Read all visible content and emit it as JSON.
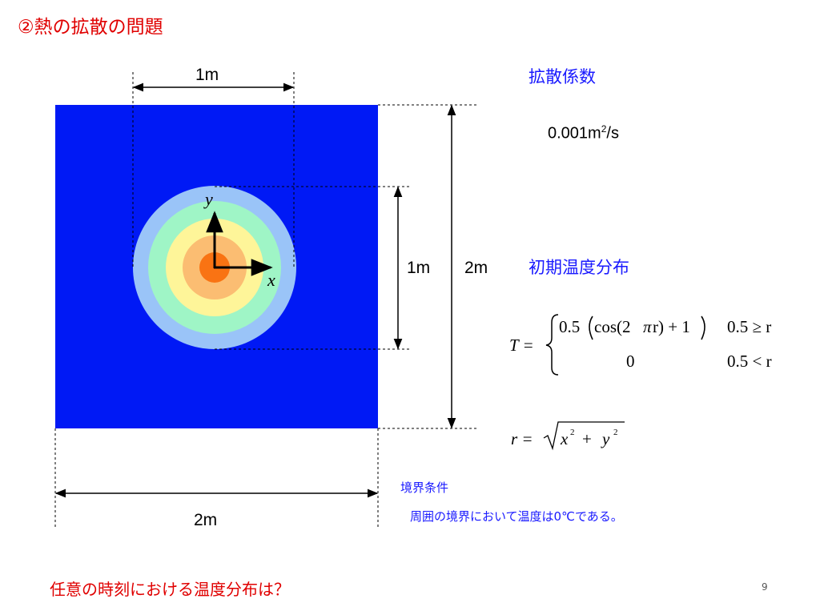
{
  "title": "②熱の拡散の問題",
  "question": "任意の時刻における温度分布は？",
  "page_number": "9",
  "diffusion": {
    "heading": "拡散係数",
    "value_prefix": "0.001m",
    "value_sup": "2",
    "value_suffix": "/s"
  },
  "initial_distribution": {
    "heading": "初期温度分布",
    "lhs": "T =",
    "case1_expr_a": "0.5",
    "case1_expr_b": "cos(2",
    "case1_expr_c": "π",
    "case1_expr_d": "r) + 1",
    "case1_cond": "0.5 ≥ r",
    "case2_expr": "0",
    "case2_cond": "0.5 < r",
    "r_lhs": "r =",
    "r_x": "x",
    "r_y": "y",
    "r_exp": "2",
    "r_plus": "+"
  },
  "boundary": {
    "heading": "境界条件",
    "text": "周囲の境界において温度は0℃である。"
  },
  "dimensions": {
    "top": "1m",
    "inner": "1m",
    "right": "2m",
    "bottom": "2m"
  },
  "axes": {
    "x": "x",
    "y": "y"
  },
  "colors": {
    "domain": "#0019f5",
    "ring1": "#9ac4f8",
    "ring2": "#9ff5c6",
    "ring3": "#fef599",
    "ring4": "#fbbd72",
    "center": "#f97313",
    "heading_blue": "#1a1aff",
    "title_red": "#e00000"
  }
}
